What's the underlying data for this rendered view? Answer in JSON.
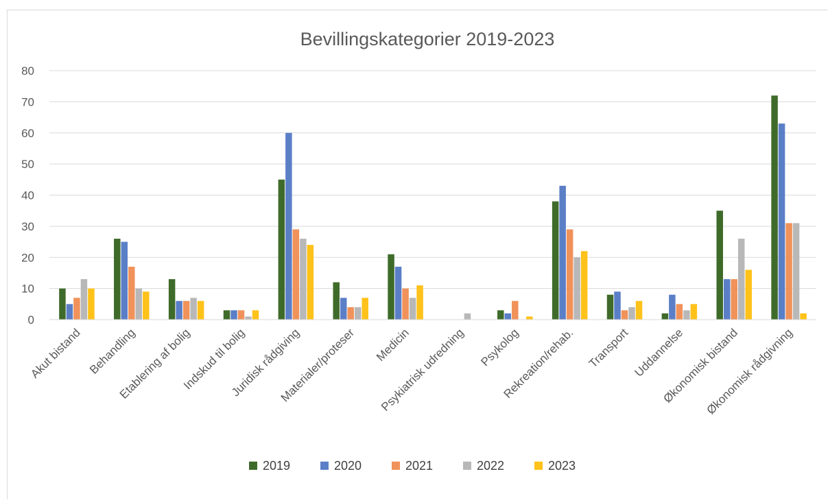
{
  "chart_data": {
    "type": "bar",
    "title": "Bevillingskategorier 2019-2023",
    "xlabel": "",
    "ylabel": "",
    "ylim": [
      0,
      80
    ],
    "yticks": [
      0,
      10,
      20,
      30,
      40,
      50,
      60,
      70,
      80
    ],
    "grid": true,
    "legend_position": "bottom",
    "categories": [
      "Akut bistand",
      "Behandling",
      "Etablering af bolig",
      "Indskud til bolig",
      "Juridisk rådgiving",
      "Materialer/proteser",
      "Medicin",
      "Psykiatrisk udredning",
      "Psykolog",
      "Rekreation/rehab.",
      "Transport",
      "Uddannelse",
      "Økonomisk bistand",
      "Økonomisk rådgivning"
    ],
    "series": [
      {
        "name": "2019",
        "color": "#3f6b2a",
        "values": [
          10,
          26,
          13,
          3,
          45,
          12,
          21,
          0,
          3,
          38,
          8,
          2,
          35,
          72
        ]
      },
      {
        "name": "2020",
        "color": "#5b7fc7",
        "values": [
          5,
          25,
          6,
          3,
          60,
          7,
          17,
          0,
          2,
          43,
          9,
          8,
          13,
          63
        ]
      },
      {
        "name": "2021",
        "color": "#f0925a",
        "values": [
          7,
          17,
          6,
          3,
          29,
          4,
          10,
          0,
          6,
          29,
          3,
          5,
          13,
          31
        ]
      },
      {
        "name": "2022",
        "color": "#b8b8b8",
        "values": [
          13,
          10,
          7,
          1,
          26,
          4,
          7,
          2,
          0,
          20,
          4,
          3,
          26,
          31
        ]
      },
      {
        "name": "2023",
        "color": "#ffc21a",
        "values": [
          10,
          9,
          6,
          3,
          24,
          7,
          11,
          0,
          1,
          22,
          6,
          5,
          16,
          2
        ]
      }
    ]
  }
}
